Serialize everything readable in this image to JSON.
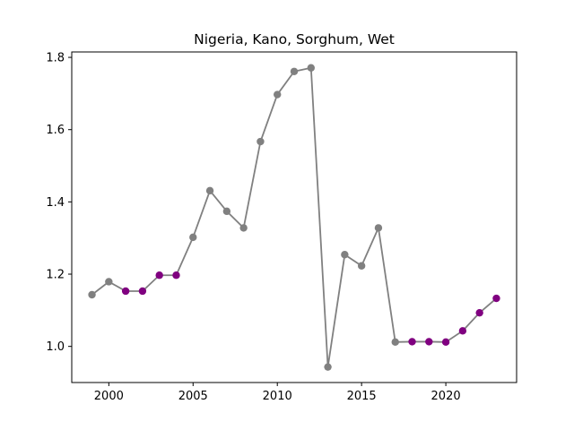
{
  "chart_data": {
    "type": "line",
    "title": "Nigeria, Kano, Sorghum, Wet",
    "xlabel": "",
    "ylabel": "",
    "xlim": [
      1997.8,
      2024.2
    ],
    "ylim": [
      0.9,
      1.815
    ],
    "x_ticks": [
      2000,
      2005,
      2010,
      2015,
      2020
    ],
    "x_tick_labels": [
      "2000",
      "2005",
      "2010",
      "2015",
      "2020"
    ],
    "y_ticks": [
      1.0,
      1.2,
      1.4,
      1.6,
      1.8
    ],
    "y_tick_labels": [
      "1.0",
      "1.2",
      "1.4",
      "1.6",
      "1.8"
    ],
    "grid": false,
    "line_color": "#808080",
    "colors": {
      "gray": "#808080",
      "purple": "#800080"
    },
    "x": [
      1999,
      2000,
      2001,
      2002,
      2003,
      2004,
      2005,
      2006,
      2007,
      2008,
      2009,
      2010,
      2011,
      2012,
      2013,
      2014,
      2015,
      2016,
      2017,
      2018,
      2019,
      2020,
      2021,
      2022,
      2023
    ],
    "y": [
      1.143,
      1.179,
      1.153,
      1.153,
      1.197,
      1.197,
      1.302,
      1.431,
      1.374,
      1.328,
      1.567,
      1.697,
      1.761,
      1.771,
      0.943,
      1.254,
      1.223,
      1.328,
      1.012,
      1.013,
      1.013,
      1.012,
      1.043,
      1.093,
      1.133
    ],
    "point_colors": [
      "gray",
      "gray",
      "purple",
      "purple",
      "purple",
      "purple",
      "gray",
      "gray",
      "gray",
      "gray",
      "gray",
      "gray",
      "gray",
      "gray",
      "gray",
      "gray",
      "gray",
      "gray",
      "gray",
      "purple",
      "purple",
      "purple",
      "purple",
      "purple",
      "purple"
    ]
  }
}
